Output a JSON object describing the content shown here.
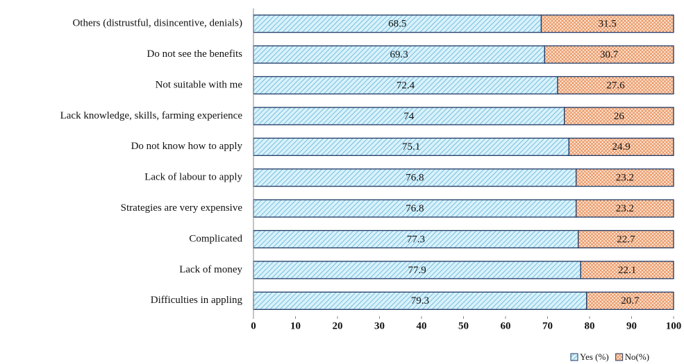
{
  "chart_data": {
    "type": "stacked-bar-horizontal",
    "categories": [
      "Others (distrustful, disincentive, denials)",
      "Do not see the benefits",
      "Not suitable with me",
      "Lack knowledge, skills, farming experience",
      "Do not know how to apply",
      "Lack of labour to apply",
      "Strategies are very expensive",
      "Complicated",
      "Lack of money",
      "Difficulties in appling"
    ],
    "series": [
      {
        "name": "Yes (%)",
        "color": "#5ab4d6",
        "values": [
          68.5,
          69.3,
          72.4,
          74,
          75.1,
          76.8,
          76.8,
          77.3,
          77.9,
          79.3
        ]
      },
      {
        "name": "No(%)",
        "color": "#e8905a",
        "values": [
          31.5,
          30.7,
          27.6,
          26,
          24.9,
          23.2,
          23.2,
          22.7,
          22.1,
          20.7
        ]
      }
    ],
    "xlim": [
      0,
      100
    ],
    "xticks": [
      0,
      10,
      20,
      30,
      40,
      50,
      60,
      70,
      80,
      90,
      100
    ],
    "legend": "bottom-right"
  }
}
